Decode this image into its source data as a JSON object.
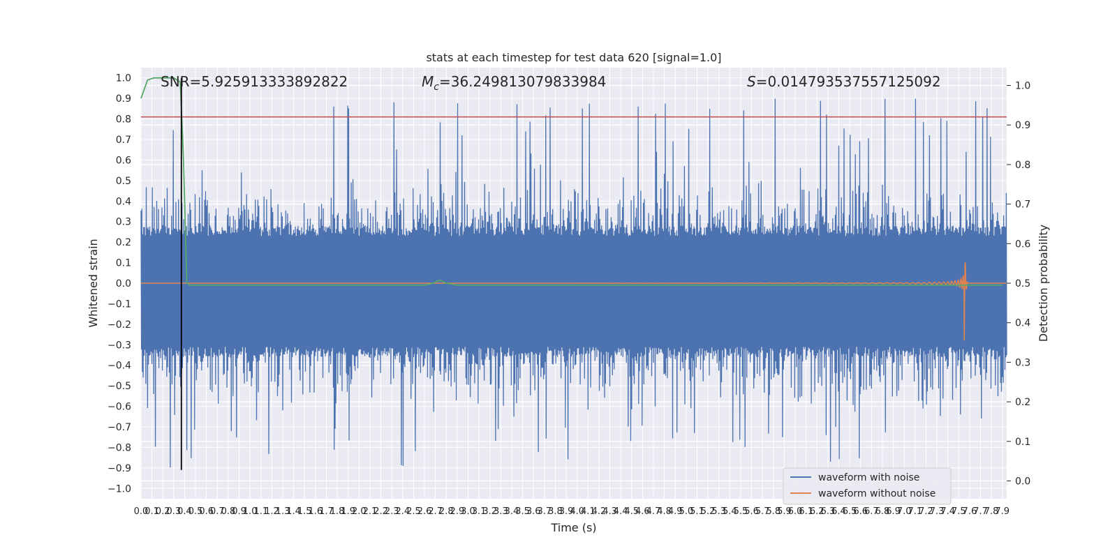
{
  "chart_data": {
    "type": "line",
    "title": "stats at each timestep for test data 620 [signal=1.0]",
    "xlabel": "Time (s)",
    "ylabel": "Whitened strain",
    "ylabel_right": "Detection probability",
    "xlim": [
      0.0,
      7.94
    ],
    "ylim": [
      -1.05,
      1.05
    ],
    "ylim_right": [
      -0.045,
      1.045
    ],
    "x_tick_step": 0.1,
    "x_ticks_end": 7.9,
    "y_ticks": [
      -1.0,
      -0.9,
      -0.8,
      -0.7,
      -0.6,
      -0.5,
      -0.4,
      -0.3,
      -0.2,
      -0.1,
      0.0,
      0.1,
      0.2,
      0.3,
      0.4,
      0.5,
      0.6,
      0.7,
      0.8,
      0.9,
      1.0
    ],
    "y_ticks_right": [
      0.0,
      0.1,
      0.2,
      0.3,
      0.4,
      0.5,
      0.6,
      0.7,
      0.8,
      0.9,
      1.0
    ],
    "grid": true,
    "legend_placement": "lower-right",
    "annotations": {
      "snr": "SNR=5.925913333892822",
      "mc_symbol": "M",
      "mc_sub": "c",
      "mc_value": "=36.249813079833984",
      "s_symbol": "S",
      "s_value": "=0.014793537557125092"
    },
    "series": [
      {
        "name": "waveform with noise",
        "color": "#4c72b0",
        "envelope": {
          "upper": 0.28,
          "lower": -0.36,
          "noise_amplitude": 0.62,
          "sample_step": 0.004
        }
      },
      {
        "name": "waveform without noise",
        "color": "#dd8452",
        "chirp": {
          "start": 4.0,
          "merger": 7.55,
          "peak": 0.35,
          "min": -0.33
        }
      },
      {
        "color": "#55a868",
        "x": [
          0.0,
          0.06,
          0.12,
          0.18,
          0.24,
          0.3,
          0.36,
          0.39,
          0.42,
          0.45,
          0.5,
          1.0,
          2.0,
          2.5,
          2.6,
          2.68,
          2.74,
          2.8,
          2.9,
          3.5,
          5.0,
          7.0,
          7.9
        ],
        "y": [
          0.9,
          0.99,
          1.0,
          1.0,
          1.0,
          1.0,
          0.98,
          0.6,
          0.0,
          -0.01,
          -0.01,
          -0.01,
          -0.01,
          -0.01,
          -0.01,
          0.0,
          0.015,
          0.0,
          -0.01,
          -0.01,
          -0.01,
          -0.01,
          -0.01
        ]
      },
      {
        "color": "#c44e52",
        "hline": 0.81
      },
      {
        "color": "#000000",
        "vline": 0.37,
        "ymin": -0.91,
        "ymax": 1.0
      }
    ]
  }
}
